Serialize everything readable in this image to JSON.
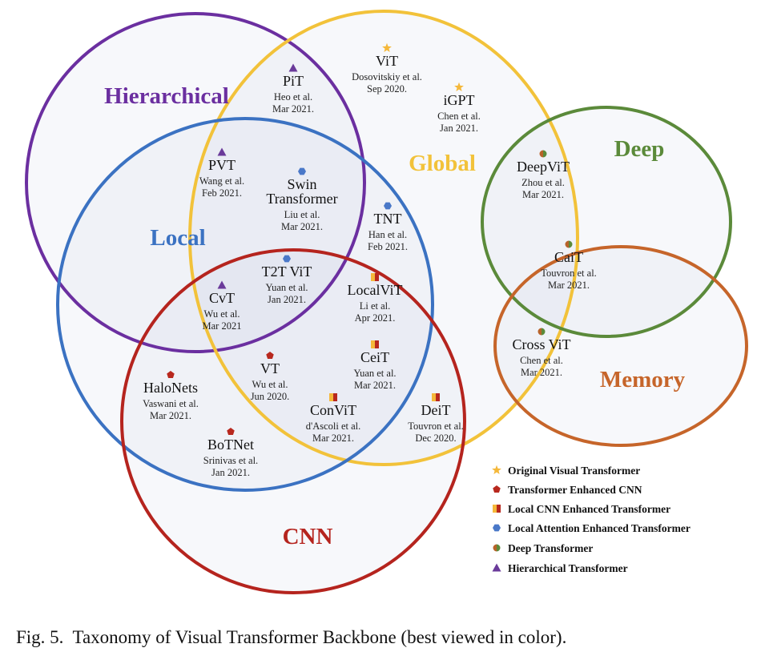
{
  "groups": [
    {
      "id": "hierarchical",
      "label": "Hierarchical",
      "color": "#6b2fa0"
    },
    {
      "id": "global",
      "label": "Global",
      "color": "#f2c23a"
    },
    {
      "id": "local",
      "label": "Local",
      "color": "#3b72c2"
    },
    {
      "id": "cnn",
      "label": "CNN",
      "color": "#b5241e"
    },
    {
      "id": "deep",
      "label": "Deep",
      "color": "#5b8a3a"
    },
    {
      "id": "memory",
      "label": "Memory",
      "color": "#c6652a"
    }
  ],
  "models": [
    {
      "name": "ViT",
      "author": "Dosovitskiy et al.",
      "date": "Sep 2020.",
      "type": "original"
    },
    {
      "name": "iGPT",
      "author": "Chen et al.",
      "date": "Jan 2021.",
      "type": "original"
    },
    {
      "name": "PiT",
      "author": "Heo et al.",
      "date": "Mar 2021.",
      "type": "hierarchical"
    },
    {
      "name": "PVT",
      "author": "Wang et al.",
      "date": "Feb 2021.",
      "type": "hierarchical"
    },
    {
      "name": "Swin Transformer",
      "author": "Liu et al.",
      "date": "Mar 2021.",
      "type": "local_attention"
    },
    {
      "name": "TNT",
      "author": "Han et al.",
      "date": "Feb 2021.",
      "type": "local_attention"
    },
    {
      "name": "T2T ViT",
      "author": "Yuan et al.",
      "date": "Jan 2021.",
      "type": "local_attention"
    },
    {
      "name": "CvT",
      "author": "Wu et al.",
      "date": "Mar 2021",
      "type": "hierarchical"
    },
    {
      "name": "LocalViT",
      "author": "Li et al.",
      "date": "Apr 2021.",
      "type": "local_cnn"
    },
    {
      "name": "CeiT",
      "author": "Yuan et al.",
      "date": "Mar 2021.",
      "type": "local_cnn"
    },
    {
      "name": "VT",
      "author": "Wu et al.",
      "date": "Jun 2020.",
      "type": "transformer_cnn"
    },
    {
      "name": "HaloNets",
      "author": "Vaswani et al.",
      "date": "Mar 2021.",
      "type": "transformer_cnn"
    },
    {
      "name": "ConViT",
      "author": "d'Ascoli et al.",
      "date": "Mar 2021.",
      "type": "local_cnn"
    },
    {
      "name": "DeiT",
      "author": "Touvron et al.",
      "date": "Dec 2020.",
      "type": "local_cnn"
    },
    {
      "name": "BoTNet",
      "author": "Srinivas et al.",
      "date": "Jan 2021.",
      "type": "transformer_cnn"
    },
    {
      "name": "DeepViT",
      "author": "Zhou et al.",
      "date": "Mar 2021.",
      "type": "deep"
    },
    {
      "name": "CaiT",
      "author": "Touvron et al.",
      "date": "Mar 2021.",
      "type": "deep"
    },
    {
      "name": "Cross ViT",
      "author": "Chen et al.",
      "date": "Mar 2021.",
      "type": "deep"
    }
  ],
  "legend": [
    {
      "type": "original",
      "label": "Original Visual Transformer",
      "icon": "star-icon"
    },
    {
      "type": "transformer_cnn",
      "label": "Transformer Enhanced CNN",
      "icon": "pentagon-icon"
    },
    {
      "type": "local_cnn",
      "label": "Local CNN Enhanced Transformer",
      "icon": "square-icon"
    },
    {
      "type": "local_attention",
      "label": "Local Attention Enhanced Transformer",
      "icon": "hexagon-icon"
    },
    {
      "type": "deep",
      "label": "Deep Transformer",
      "icon": "circle-icon"
    },
    {
      "type": "hierarchical",
      "label": "Hierarchical Transformer",
      "icon": "triangle-icon"
    }
  ],
  "marker_colors": {
    "star": "#f5b83a",
    "pentagon": "#b8281e",
    "square_left": "#f5b83a",
    "square_right": "#b8281e",
    "hexagon": "#4a78c8",
    "circle_left": "#b8632a",
    "circle_right": "#5b8a3a",
    "triangle": "#6a3a9a"
  },
  "caption": "Fig. 5.  Taxonomy of Visual Transformer Backbone (best viewed in color)."
}
